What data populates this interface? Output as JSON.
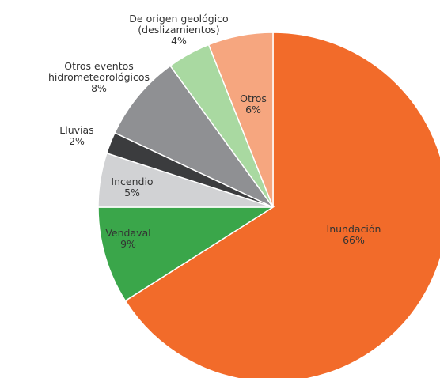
{
  "chart_data": {
    "type": "pie",
    "categories": [
      "Inundación",
      "Vendaval",
      "Incendio",
      "Lluvias",
      "Otros eventos\nhidrometeorológicos",
      "De origen geológico\n(deslizamientos)",
      "Otros"
    ],
    "values": [
      66,
      9,
      5,
      2,
      8,
      4,
      6
    ],
    "value_labels": [
      "66%",
      "9%",
      "5%",
      "2%",
      "8%",
      "4%",
      "6%"
    ],
    "colors": [
      "#f26b2a",
      "#3aa64a",
      "#d1d2d4",
      "#3b3c3e",
      "#8f9093",
      "#a9d9a1",
      "#f6a67f"
    ]
  }
}
